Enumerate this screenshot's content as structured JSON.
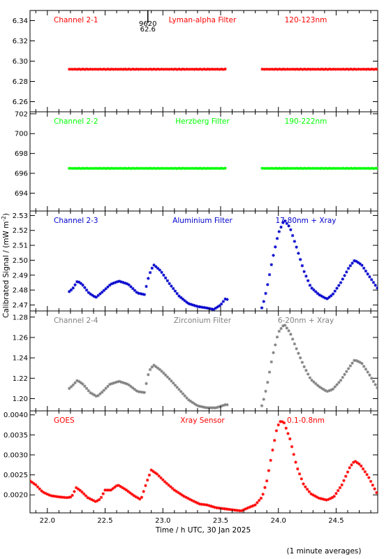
{
  "chart_data": {
    "type": "scatter",
    "ylabel": "Calibrated Signal / (mW m",
    "ylabel_sup": "-2",
    "ylabel_end": ")",
    "xlabel": "Time / h UTC, 30 Jan 2025",
    "footnote": "(1 minute averages)",
    "xlim": [
      21.85,
      24.86
    ],
    "xticks": [
      "22.0",
      "22.5",
      "23.0",
      "23.5",
      "24.0",
      "24.5"
    ],
    "marker": {
      "x": 22.87,
      "labels": [
        "9620",
        "62.6"
      ]
    },
    "panels": [
      {
        "name": "Channel 2-1",
        "filter": "Lyman-alpha Filter",
        "band": "120-123nm",
        "color": "#ff0000",
        "ylim": [
          6.25,
          6.35
        ],
        "yticks": [
          "6.26",
          "6.28",
          "6.30",
          "6.32",
          "6.34"
        ],
        "shape": "flat",
        "segments": [
          {
            "x": [
              22.19,
              23.54
            ],
            "y": 6.292
          },
          {
            "x": [
              23.86,
              24.86
            ],
            "y": 6.292
          }
        ]
      },
      {
        "name": "Channel 2-2",
        "filter": "Herzberg Filter",
        "band": "190-222nm",
        "color": "#00ff00",
        "ylim": [
          692.2,
          702.2
        ],
        "yticks": [
          "694",
          "696",
          "698",
          "700",
          "702"
        ],
        "shape": "flat",
        "segments": [
          {
            "x": [
              22.19,
              23.54
            ],
            "y": 696.5
          },
          {
            "x": [
              23.86,
              24.86
            ],
            "y": 696.5
          }
        ]
      },
      {
        "name": "Channel 2-3",
        "filter": "Aluminium Filter",
        "band": "17-80nm + Xray",
        "color": "#0000cc",
        "ylim": [
          2.466,
          2.533
        ],
        "yticks": [
          "2.47",
          "2.48",
          "2.49",
          "2.50",
          "2.51",
          "2.52",
          "2.53"
        ],
        "shape": "flare",
        "curve": [
          [
            22.19,
            2.479
          ],
          [
            22.22,
            2.481
          ],
          [
            22.26,
            2.486
          ],
          [
            22.3,
            2.484
          ],
          [
            22.36,
            2.478
          ],
          [
            22.42,
            2.475
          ],
          [
            22.48,
            2.479
          ],
          [
            22.55,
            2.484
          ],
          [
            22.62,
            2.486
          ],
          [
            22.7,
            2.484
          ],
          [
            22.78,
            2.478
          ],
          [
            22.84,
            2.477
          ],
          [
            22.88,
            2.49
          ],
          [
            22.92,
            2.497
          ],
          [
            22.98,
            2.493
          ],
          [
            23.06,
            2.484
          ],
          [
            23.14,
            2.476
          ],
          [
            23.22,
            2.471
          ],
          [
            23.3,
            2.469
          ],
          [
            23.38,
            2.468
          ],
          [
            23.44,
            2.467
          ],
          [
            23.5,
            2.47
          ],
          [
            23.54,
            2.474
          ],
          [
            23.86,
            2.468
          ],
          [
            23.9,
            2.481
          ],
          [
            23.95,
            2.501
          ],
          [
            24.0,
            2.518
          ],
          [
            24.05,
            2.527
          ],
          [
            24.1,
            2.522
          ],
          [
            24.16,
            2.508
          ],
          [
            24.22,
            2.493
          ],
          [
            24.28,
            2.482
          ],
          [
            24.35,
            2.477
          ],
          [
            24.42,
            2.474
          ],
          [
            24.47,
            2.477
          ],
          [
            24.54,
            2.485
          ],
          [
            24.61,
            2.495
          ],
          [
            24.66,
            2.5
          ],
          [
            24.72,
            2.497
          ],
          [
            24.78,
            2.49
          ],
          [
            24.86,
            2.481
          ]
        ]
      },
      {
        "name": "Channel 2-4",
        "filter": "Zirconium Filter",
        "band": "6-20nm + Xray",
        "color": "#808080",
        "ylim": [
          1.188,
          1.286
        ],
        "yticks": [
          "1.20",
          "1.22",
          "1.24",
          "1.26",
          "1.28"
        ],
        "shape": "flare",
        "curve": [
          [
            22.19,
            1.21
          ],
          [
            22.22,
            1.213
          ],
          [
            22.26,
            1.218
          ],
          [
            22.31,
            1.214
          ],
          [
            22.37,
            1.206
          ],
          [
            22.43,
            1.202
          ],
          [
            22.48,
            1.207
          ],
          [
            22.54,
            1.214
          ],
          [
            22.62,
            1.217
          ],
          [
            22.7,
            1.214
          ],
          [
            22.78,
            1.207
          ],
          [
            22.84,
            1.206
          ],
          [
            22.88,
            1.227
          ],
          [
            22.92,
            1.233
          ],
          [
            22.98,
            1.228
          ],
          [
            23.06,
            1.219
          ],
          [
            23.14,
            1.209
          ],
          [
            23.22,
            1.199
          ],
          [
            23.3,
            1.193
          ],
          [
            23.38,
            1.191
          ],
          [
            23.46,
            1.191
          ],
          [
            23.54,
            1.194
          ],
          [
            23.86,
            1.193
          ],
          [
            23.9,
            1.212
          ],
          [
            23.95,
            1.242
          ],
          [
            24.0,
            1.265
          ],
          [
            24.05,
            1.273
          ],
          [
            24.1,
            1.265
          ],
          [
            24.16,
            1.248
          ],
          [
            24.22,
            1.232
          ],
          [
            24.28,
            1.219
          ],
          [
            24.35,
            1.212
          ],
          [
            24.42,
            1.207
          ],
          [
            24.47,
            1.209
          ],
          [
            24.54,
            1.218
          ],
          [
            24.61,
            1.23
          ],
          [
            24.66,
            1.238
          ],
          [
            24.72,
            1.235
          ],
          [
            24.78,
            1.225
          ],
          [
            24.86,
            1.21
          ]
        ]
      },
      {
        "name": "GOES",
        "filter": "Xray Sensor",
        "band": "0.1-0.8nm",
        "color": "#ff0000",
        "ylim": [
          0.00155,
          0.0041
        ],
        "yticks": [
          "0.0020",
          "0.0025",
          "0.0030",
          "0.0035",
          "0.0040"
        ],
        "shape": "flare",
        "curve": [
          [
            21.85,
            0.00235
          ],
          [
            21.9,
            0.00225
          ],
          [
            21.96,
            0.00207
          ],
          [
            22.03,
            0.00198
          ],
          [
            22.1,
            0.00195
          ],
          [
            22.17,
            0.00193
          ],
          [
            22.21,
            0.00195
          ],
          [
            22.25,
            0.00218
          ],
          [
            22.29,
            0.0021
          ],
          [
            22.35,
            0.00193
          ],
          [
            22.42,
            0.00183
          ],
          [
            22.46,
            0.0019
          ],
          [
            22.5,
            0.00212
          ],
          [
            22.55,
            0.00212
          ],
          [
            22.61,
            0.00225
          ],
          [
            22.68,
            0.00213
          ],
          [
            22.75,
            0.00198
          ],
          [
            22.81,
            0.00188
          ],
          [
            22.86,
            0.00232
          ],
          [
            22.9,
            0.00262
          ],
          [
            22.95,
            0.00252
          ],
          [
            23.02,
            0.00232
          ],
          [
            23.1,
            0.00212
          ],
          [
            23.18,
            0.00197
          ],
          [
            23.26,
            0.00185
          ],
          [
            23.32,
            0.00177
          ],
          [
            23.38,
            0.00175
          ],
          [
            23.46,
            0.00168
          ],
          [
            23.54,
            0.00165
          ],
          [
            23.62,
            0.00162
          ],
          [
            23.68,
            0.0016
          ],
          [
            23.74,
            0.00168
          ],
          [
            23.8,
            0.00175
          ],
          [
            23.86,
            0.00195
          ],
          [
            23.9,
            0.00235
          ],
          [
            23.95,
            0.00312
          ],
          [
            23.99,
            0.0037
          ],
          [
            24.02,
            0.00385
          ],
          [
            24.05,
            0.0038
          ],
          [
            24.1,
            0.0034
          ],
          [
            24.16,
            0.0027
          ],
          [
            24.22,
            0.00225
          ],
          [
            24.28,
            0.00203
          ],
          [
            24.35,
            0.00192
          ],
          [
            24.42,
            0.00187
          ],
          [
            24.48,
            0.00195
          ],
          [
            24.55,
            0.00225
          ],
          [
            24.62,
            0.0027
          ],
          [
            24.66,
            0.00285
          ],
          [
            24.71,
            0.00275
          ],
          [
            24.78,
            0.00245
          ],
          [
            24.86,
            0.002
          ]
        ]
      }
    ]
  }
}
